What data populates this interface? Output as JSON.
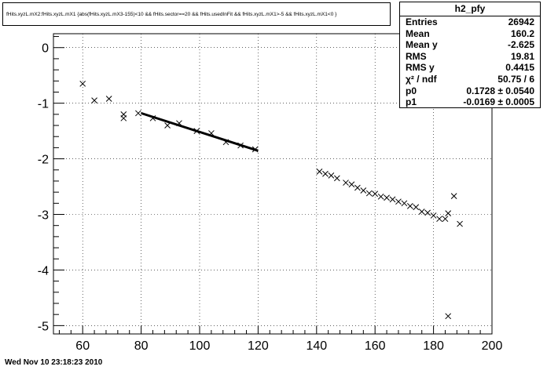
{
  "title": "fHits.xyzL.mX2:fHits.xyzL.mX1 {abs(fHits.xyzL.mX3-155)<10 && fHits.sector==20 && fHits.usedInFit && fHits.xyzL.mX1>-5 && fHits.xyzL.mX1<0 }",
  "stats": {
    "name": "h2_pfy",
    "rows": [
      {
        "label": "Entries",
        "value": "26942"
      },
      {
        "label": "Mean",
        "value": "160.2"
      },
      {
        "label": "Mean y",
        "value": "-2.625"
      },
      {
        "label": "RMS",
        "value": "19.81"
      },
      {
        "label": "RMS y",
        "value": "0.4415"
      },
      {
        "label": "χ² / ndf",
        "value": "50.75 / 6"
      },
      {
        "label": "p0",
        "value": "0.1728 ± 0.0540"
      },
      {
        "label": "p1",
        "value": "-0.0169 ± 0.0005"
      }
    ]
  },
  "footer": "Wed Nov 10 23:18:23 2010",
  "chart_data": {
    "type": "scatter",
    "xlim": [
      50,
      200
    ],
    "ylim": [
      -5.15,
      0.25
    ],
    "xticks": [
      60,
      80,
      100,
      120,
      140,
      160,
      180,
      200
    ],
    "yticks": [
      0,
      -1,
      -2,
      -3,
      -4,
      -5
    ],
    "grid": true,
    "points": [
      [
        60,
        -0.65
      ],
      [
        64,
        -0.95
      ],
      [
        69,
        -0.92
      ],
      [
        74,
        -1.2
      ],
      [
        74,
        -1.27
      ],
      [
        79,
        -1.18
      ],
      [
        84,
        -1.27
      ],
      [
        89,
        -1.4
      ],
      [
        93,
        -1.36
      ],
      [
        99,
        -1.5
      ],
      [
        104,
        -1.54
      ],
      [
        109,
        -1.7
      ],
      [
        114,
        -1.76
      ],
      [
        119,
        -1.83
      ],
      [
        141,
        -2.23
      ],
      [
        143,
        -2.27
      ],
      [
        145,
        -2.3
      ],
      [
        147,
        -2.35
      ],
      [
        150,
        -2.43
      ],
      [
        152,
        -2.46
      ],
      [
        154,
        -2.52
      ],
      [
        156,
        -2.57
      ],
      [
        158,
        -2.62
      ],
      [
        160,
        -2.63
      ],
      [
        162,
        -2.68
      ],
      [
        164,
        -2.7
      ],
      [
        166,
        -2.73
      ],
      [
        168,
        -2.77
      ],
      [
        170,
        -2.8
      ],
      [
        172,
        -2.85
      ],
      [
        174,
        -2.87
      ],
      [
        176,
        -2.95
      ],
      [
        178,
        -2.97
      ],
      [
        180,
        -3.02
      ],
      [
        182,
        -3.08
      ],
      [
        184,
        -3.08
      ],
      [
        185,
        -2.98
      ],
      [
        187,
        -2.67
      ],
      [
        189,
        -3.17
      ],
      [
        185,
        -4.83
      ]
    ],
    "fit": {
      "x_from": 80,
      "x_to": 120,
      "p0": 0.1728,
      "p1": -0.0169
    }
  }
}
